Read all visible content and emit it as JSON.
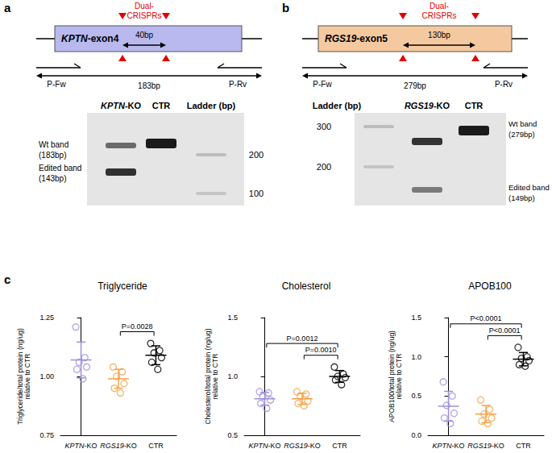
{
  "panel_labels": [
    "a",
    "b",
    "c"
  ],
  "diagrams": [
    {
      "gene": "KPTN",
      "exon": "-exon4",
      "crispr_label": [
        "Dual-",
        "CRISPRs"
      ],
      "deletion": "40bp",
      "amplicon": "183bp",
      "primers": [
        "P-Fw",
        "P-Rv"
      ],
      "gel_lanes": [
        "KPTN-KO",
        "CTR",
        "Ladder (bp)"
      ],
      "ladder_marks": [
        200,
        100
      ],
      "band_labels": [
        [
          "Wt band",
          "(183bp)"
        ],
        [
          "Edited band",
          "(143bp)"
        ]
      ]
    },
    {
      "gene": "RGS19",
      "exon": "-exon5",
      "crispr_label": [
        "Dual-",
        "CRISPRs"
      ],
      "deletion": "130bp",
      "amplicon": "279bp",
      "primers": [
        "P-Fw",
        "P-Rv"
      ],
      "gel_lanes": [
        "Ladder (bp)",
        "RGS19-KO",
        "CTR"
      ],
      "ladder_marks": [
        300,
        200
      ],
      "band_labels": [
        [
          "Wt band",
          "(279bp)"
        ],
        [
          "Edited band",
          "(149bp)"
        ]
      ]
    }
  ],
  "chart_data": [
    {
      "type": "scatter",
      "title": "Triglyceride",
      "ylabel": "Triglyceride/total protein (ng/ug)\nrelative to CTR",
      "categories": [
        "KPTN-KO",
        "RGS19-KO",
        "CTR"
      ],
      "colors": [
        "#9d8fdb",
        "#f3a24a",
        "#000000"
      ],
      "marker": "open_circle",
      "values": [
        [
          1.21,
          1.08,
          1.06,
          1.04,
          1.03,
          0.99
        ],
        [
          1.04,
          1.02,
          1.0,
          0.97,
          0.95,
          0.93
        ],
        [
          1.14,
          1.11,
          1.1,
          1.08,
          1.06,
          1.03
        ]
      ],
      "mean": [
        1.07,
        0.99,
        1.09
      ],
      "sd": [
        0.076,
        0.04,
        0.04
      ],
      "ylim": [
        0.75,
        1.25
      ],
      "yticks": [
        0.75,
        {
          "value": 1,
          "label": "1.00"
        },
        1.25
      ],
      "annotations": [
        {
          "text": "P=0.0028",
          "between": [
            "RGS19-KO",
            "CTR"
          ]
        }
      ]
    },
    {
      "type": "scatter",
      "title": "Cholesterol",
      "ylabel": "Cholesterol/total protein (ng/ug)\nrelative to CTR",
      "categories": [
        "KPTN-KO",
        "RGS19-KO",
        "CTR"
      ],
      "colors": [
        "#9d8fdb",
        "#f3a24a",
        "#000000"
      ],
      "marker": "open_circle",
      "values": [
        [
          0.87,
          0.86,
          0.83,
          0.8,
          0.77,
          0.73
        ],
        [
          0.87,
          0.85,
          0.83,
          0.79,
          0.77,
          0.75
        ],
        [
          1.08,
          1.02,
          1.0,
          0.99,
          0.97,
          0.93
        ]
      ],
      "mean": [
        0.81,
        0.81,
        1.0
      ],
      "sd": [
        0.054,
        0.047,
        0.05
      ],
      "ylim": [
        0.5,
        1.5
      ],
      "yticks": [
        0.5,
        {
          "value": 1,
          "label": "1.0"
        },
        1.5
      ],
      "annotations": [
        {
          "text": "P=0.0012",
          "between": [
            "KPTN-KO",
            "CTR"
          ]
        },
        {
          "text": "P=0.0010",
          "between": [
            "RGS19-KO",
            "CTR"
          ]
        }
      ]
    },
    {
      "type": "scatter",
      "title": "APOB100",
      "ylabel": "APOB100/total protein (ng/ug)\nrelative to CTR",
      "categories": [
        "KPTN-KO",
        "RGS19-KO",
        "CTR"
      ],
      "colors": [
        "#9d8fdb",
        "#f3a24a",
        "#000000"
      ],
      "marker": "open_circle",
      "values": [
        [
          0.68,
          0.5,
          0.38,
          0.28,
          0.22,
          0.15
        ],
        [
          0.45,
          0.33,
          0.27,
          0.22,
          0.18,
          0.15
        ],
        [
          1.12,
          1.0,
          0.98,
          0.95,
          0.9,
          0.88
        ]
      ],
      "mean": [
        0.37,
        0.27,
        0.97
      ],
      "sd": [
        0.19,
        0.11,
        0.085
      ],
      "ylim": [
        0,
        1.5
      ],
      "yticks": [
        {
          "value": 0,
          "label": "0.0"
        },
        0.5,
        {
          "value": 1,
          "label": "1.0"
        },
        1.5
      ],
      "annotations": [
        {
          "text": "P<0.0001",
          "between": [
            "KPTN-KO",
            "CTR"
          ]
        },
        {
          "text": "P<0.0001",
          "between": [
            "RGS19-KO",
            "CTR"
          ]
        }
      ]
    }
  ]
}
